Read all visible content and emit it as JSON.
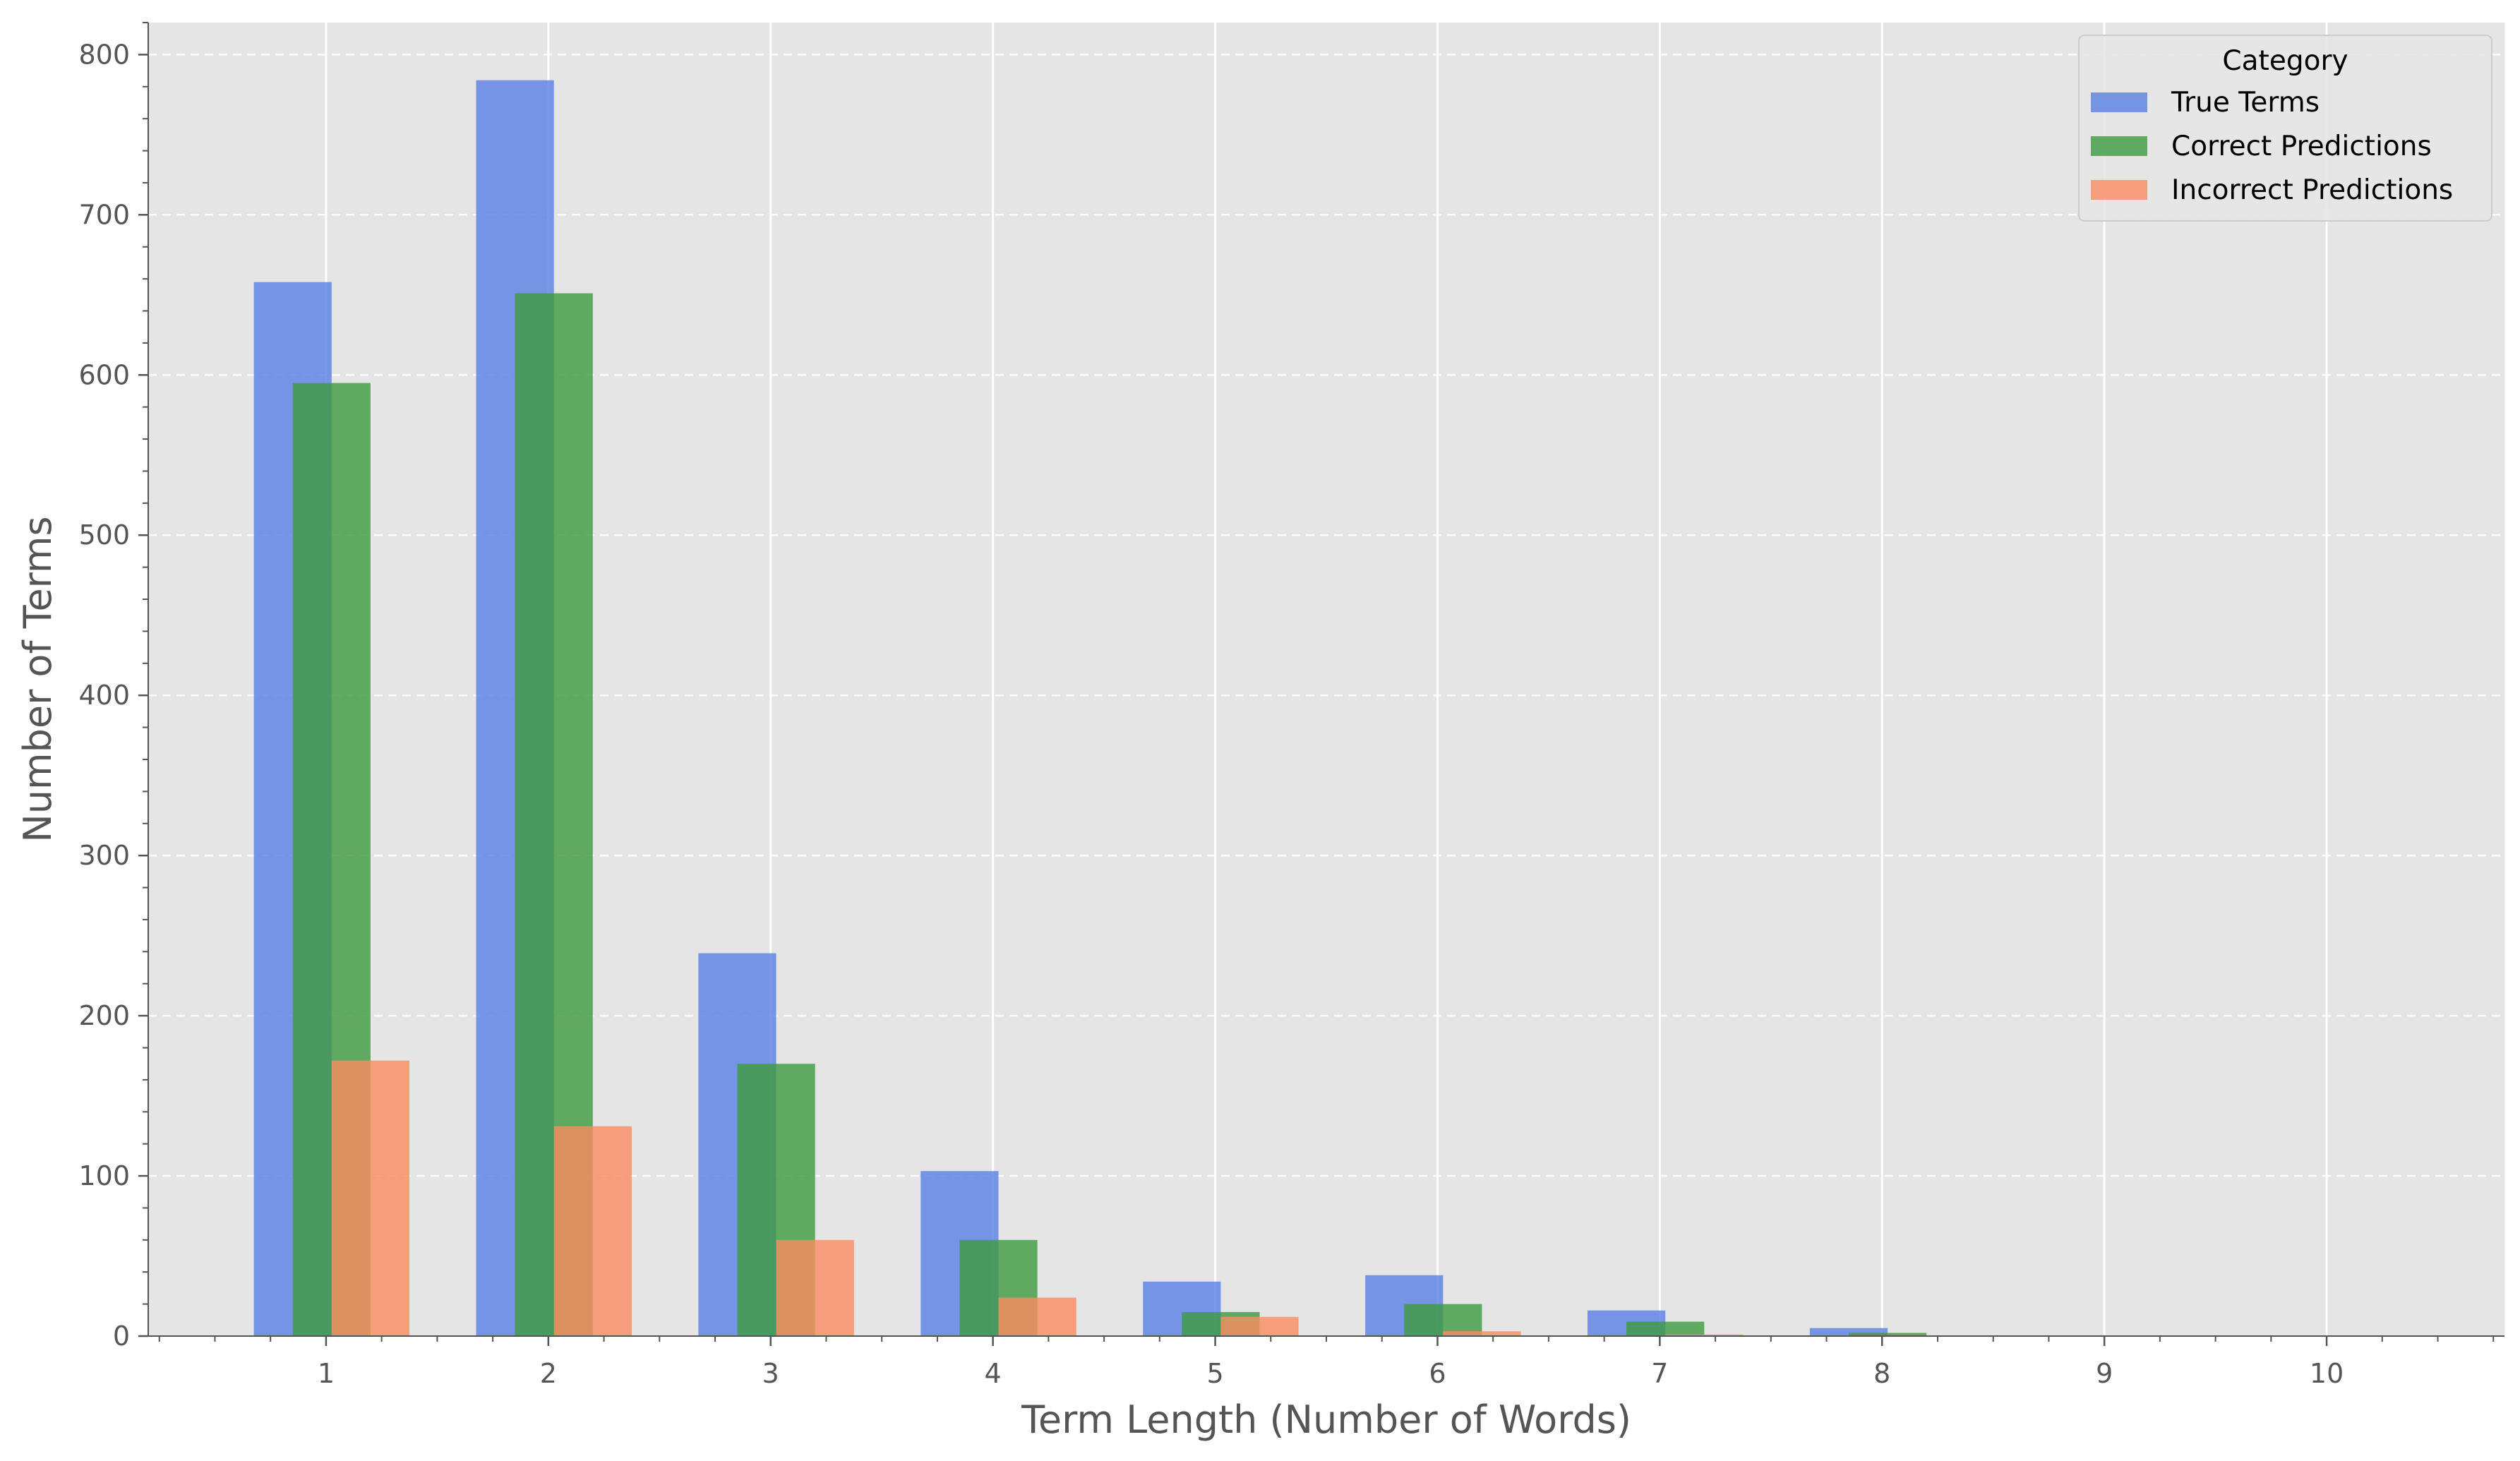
{
  "chart_data": {
    "type": "bar",
    "xlabel": "Term Length (Number of Words)",
    "ylabel": "Number of Terms",
    "categories": [
      1,
      2,
      3,
      4,
      5,
      6,
      7,
      8,
      9,
      10
    ],
    "xlim": [
      0.2,
      10.8
    ],
    "ylim": [
      0,
      820
    ],
    "yticks": [
      0,
      100,
      200,
      300,
      400,
      500,
      600,
      700,
      800
    ],
    "grid": {
      "x": true,
      "y": true,
      "y_style": "dashed"
    },
    "legend": {
      "title": "Category",
      "placement": "top-right"
    },
    "series": [
      {
        "name": "True Terms",
        "color": "#5a7fe6",
        "offset": -0.15,
        "values": [
          658,
          784,
          239,
          103,
          34,
          38,
          16,
          5,
          0,
          0
        ]
      },
      {
        "name": "Correct Predictions",
        "color": "#3f9a3f",
        "offset": 0.025,
        "values": [
          595,
          651,
          170,
          60,
          15,
          20,
          9,
          2,
          0,
          0
        ]
      },
      {
        "name": "Incorrect Predictions",
        "color": "#fa8c60",
        "offset": 0.2,
        "values": [
          172,
          131,
          60,
          24,
          12,
          3,
          1,
          0,
          0,
          0
        ]
      }
    ]
  }
}
